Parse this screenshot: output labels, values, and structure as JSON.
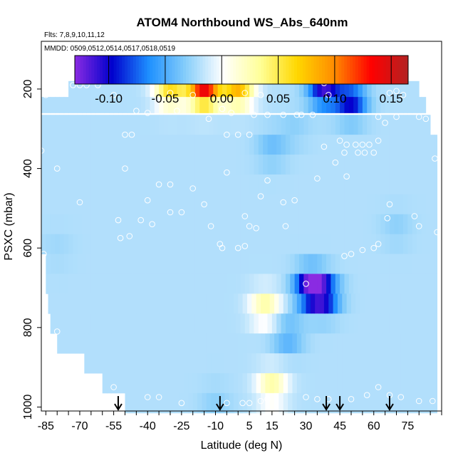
{
  "chart_data": {
    "type": "heatmap",
    "title": "ATOM4 Northbound WS_Abs_640nm",
    "subtitle_flights": "Flts: 7,8,9,10,11,12",
    "subtitle_dates": "MMDD: 0509,0512,0514,0517,0518,0519",
    "xlabel": "Latitude (deg N)",
    "ylabel": "PSXC (mbar)",
    "xlim": [
      -87,
      90
    ],
    "ylim": [
      1010,
      80
    ],
    "y_reversed": true,
    "x_ticks": [
      -85,
      -70,
      -55,
      -40,
      -25,
      -10,
      5,
      15,
      30,
      45,
      60,
      75
    ],
    "x_minor_step": 5,
    "y_ticks": [
      200,
      400,
      600,
      800,
      1000
    ],
    "colorbar": {
      "range": [
        -0.13,
        0.165
      ],
      "ticks": [
        -0.1,
        -0.05,
        0.0,
        0.05,
        0.1,
        0.15
      ],
      "tick_labels": [
        "-0.10",
        "-0.05",
        "0.00",
        "0.05",
        "0.10",
        "0.15"
      ],
      "colors": [
        "#8a2be2",
        "#0000cd",
        "#1e90ff",
        "#87cefa",
        "#ffffff",
        "#ffff99",
        "#ffd700",
        "#ff8c00",
        "#ff0000",
        "#b22222"
      ]
    },
    "pressure_levels": [
      200,
      240,
      290,
      340,
      390,
      440,
      490,
      540,
      590,
      640,
      690,
      740,
      790,
      840,
      890,
      940,
      990
    ],
    "latitude_extent_per_level": [
      [
        -75,
        80
      ],
      [
        -87,
        83
      ],
      [
        -87,
        85
      ],
      [
        -87,
        88
      ],
      [
        -87,
        88
      ],
      [
        -87,
        88
      ],
      [
        -87,
        88
      ],
      [
        -87,
        88
      ],
      [
        -87,
        88
      ],
      [
        -85,
        88
      ],
      [
        -85,
        88
      ],
      [
        -84,
        88
      ],
      [
        -83,
        88
      ],
      [
        -80,
        88
      ],
      [
        -68,
        88
      ],
      [
        -60,
        88
      ],
      [
        -50,
        88
      ]
    ],
    "field_anomalies": [
      {
        "lat": -15,
        "p": 200,
        "value": 0.14
      },
      {
        "lat": -30,
        "p": 200,
        "value": 0.06
      },
      {
        "lat": 0,
        "p": 200,
        "value": 0.08
      },
      {
        "lat": 38,
        "p": 200,
        "value": -0.11
      },
      {
        "lat": 50,
        "p": 230,
        "value": -0.1
      },
      {
        "lat": 15,
        "p": 350,
        "value": -0.04
      },
      {
        "lat": 25,
        "p": 300,
        "value": -0.03
      },
      {
        "lat": 32,
        "p": 700,
        "value": -0.12
      },
      {
        "lat": 38,
        "p": 720,
        "value": -0.1
      },
      {
        "lat": 22,
        "p": 820,
        "value": -0.05
      },
      {
        "lat": 12,
        "p": 750,
        "value": 0.03
      },
      {
        "lat": 15,
        "p": 950,
        "value": 0.03
      },
      {
        "lat": -10,
        "p": 990,
        "value": -0.03
      },
      {
        "lat": 45,
        "p": 400,
        "value": -0.02
      },
      {
        "lat": 70,
        "p": 550,
        "value": -0.03
      },
      {
        "lat": -80,
        "p": 600,
        "value": -0.025
      }
    ],
    "background_value": -0.02,
    "sample_points": [
      {
        "lat": -73,
        "p": 190
      },
      {
        "lat": -70,
        "p": 190
      },
      {
        "lat": -67,
        "p": 190
      },
      {
        "lat": -62,
        "p": 190
      },
      {
        "lat": -77,
        "p": 210
      },
      {
        "lat": -85,
        "p": 215
      },
      {
        "lat": -55,
        "p": 215
      },
      {
        "lat": -30,
        "p": 210
      },
      {
        "lat": -20,
        "p": 215
      },
      {
        "lat": 3,
        "p": 210
      },
      {
        "lat": 10,
        "p": 215
      },
      {
        "lat": 38,
        "p": 185
      },
      {
        "lat": 40,
        "p": 215
      },
      {
        "lat": 67,
        "p": 210
      },
      {
        "lat": 70,
        "p": 205
      },
      {
        "lat": 73,
        "p": 215
      },
      {
        "lat": -45,
        "p": 255
      },
      {
        "lat": -40,
        "p": 260
      },
      {
        "lat": -27,
        "p": 255
      },
      {
        "lat": -7,
        "p": 250
      },
      {
        "lat": -3,
        "p": 260
      },
      {
        "lat": 7,
        "p": 265
      },
      {
        "lat": 13,
        "p": 265
      },
      {
        "lat": 20,
        "p": 265
      },
      {
        "lat": 26,
        "p": 265
      },
      {
        "lat": 28,
        "p": 265
      },
      {
        "lat": 33,
        "p": 265
      },
      {
        "lat": 62,
        "p": 270
      },
      {
        "lat": 70,
        "p": 270
      },
      {
        "lat": 80,
        "p": 270
      },
      {
        "lat": 83,
        "p": 275
      },
      {
        "lat": -13,
        "p": 275
      },
      {
        "lat": 65,
        "p": 285
      },
      {
        "lat": -50,
        "p": 315
      },
      {
        "lat": -47,
        "p": 315
      },
      {
        "lat": -5,
        "p": 315
      },
      {
        "lat": 0,
        "p": 315
      },
      {
        "lat": 5,
        "p": 315
      },
      {
        "lat": 45,
        "p": 330
      },
      {
        "lat": 48,
        "p": 340
      },
      {
        "lat": 52,
        "p": 340
      },
      {
        "lat": 55,
        "p": 340
      },
      {
        "lat": 58,
        "p": 340
      },
      {
        "lat": 62,
        "p": 330
      },
      {
        "lat": 38,
        "p": 345
      },
      {
        "lat": 47,
        "p": 360
      },
      {
        "lat": 53,
        "p": 360
      },
      {
        "lat": 56,
        "p": 360
      },
      {
        "lat": 60,
        "p": 360
      },
      {
        "lat": -87,
        "p": 355
      },
      {
        "lat": 43,
        "p": 385
      },
      {
        "lat": 87,
        "p": 375
      },
      {
        "lat": -80,
        "p": 400
      },
      {
        "lat": -50,
        "p": 400
      },
      {
        "lat": -5,
        "p": 410
      },
      {
        "lat": 13,
        "p": 430
      },
      {
        "lat": 35,
        "p": 425
      },
      {
        "lat": 48,
        "p": 420
      },
      {
        "lat": -35,
        "p": 440
      },
      {
        "lat": -30,
        "p": 440
      },
      {
        "lat": -20,
        "p": 450
      },
      {
        "lat": -70,
        "p": 485
      },
      {
        "lat": -40,
        "p": 480
      },
      {
        "lat": -15,
        "p": 490
      },
      {
        "lat": 10,
        "p": 470
      },
      {
        "lat": 20,
        "p": 485
      },
      {
        "lat": 25,
        "p": 480
      },
      {
        "lat": 67,
        "p": 490
      },
      {
        "lat": -53,
        "p": 530
      },
      {
        "lat": -43,
        "p": 530
      },
      {
        "lat": -30,
        "p": 510
      },
      {
        "lat": -25,
        "p": 510
      },
      {
        "lat": 3,
        "p": 520
      },
      {
        "lat": 66,
        "p": 525
      },
      {
        "lat": 78,
        "p": 520
      },
      {
        "lat": -52,
        "p": 575
      },
      {
        "lat": -48,
        "p": 570
      },
      {
        "lat": -38,
        "p": 540
      },
      {
        "lat": -12,
        "p": 545
      },
      {
        "lat": 5,
        "p": 545
      },
      {
        "lat": 8,
        "p": 550
      },
      {
        "lat": 21,
        "p": 545
      },
      {
        "lat": 80,
        "p": 545
      },
      {
        "lat": 88,
        "p": 560
      },
      {
        "lat": 62,
        "p": 590
      },
      {
        "lat": 60,
        "p": 600
      },
      {
        "lat": 55,
        "p": 605
      },
      {
        "lat": 50,
        "p": 615
      },
      {
        "lat": 47,
        "p": 620
      },
      {
        "lat": 0,
        "p": 600
      },
      {
        "lat": 3,
        "p": 595
      },
      {
        "lat": -8,
        "p": 590
      },
      {
        "lat": -7,
        "p": 600
      },
      {
        "lat": -86,
        "p": 615
      },
      {
        "lat": 30,
        "p": 690
      },
      {
        "lat": -80,
        "p": 810
      },
      {
        "lat": -55,
        "p": 950
      },
      {
        "lat": -40,
        "p": 975
      },
      {
        "lat": -35,
        "p": 975
      },
      {
        "lat": -25,
        "p": 990
      },
      {
        "lat": -5,
        "p": 990
      },
      {
        "lat": 2,
        "p": 990
      },
      {
        "lat": 5,
        "p": 990
      },
      {
        "lat": 10,
        "p": 985
      },
      {
        "lat": 13,
        "p": 980
      },
      {
        "lat": 30,
        "p": 975
      },
      {
        "lat": 35,
        "p": 980
      },
      {
        "lat": 40,
        "p": 980
      },
      {
        "lat": 50,
        "p": 980
      },
      {
        "lat": 57,
        "p": 970
      },
      {
        "lat": 62,
        "p": 950
      },
      {
        "lat": 67,
        "p": 970
      },
      {
        "lat": 72,
        "p": 975
      },
      {
        "lat": 80,
        "p": 985
      },
      {
        "lat": 86,
        "p": 985
      }
    ],
    "arrow_latitudes": [
      -53,
      -8,
      39,
      45,
      67
    ]
  }
}
